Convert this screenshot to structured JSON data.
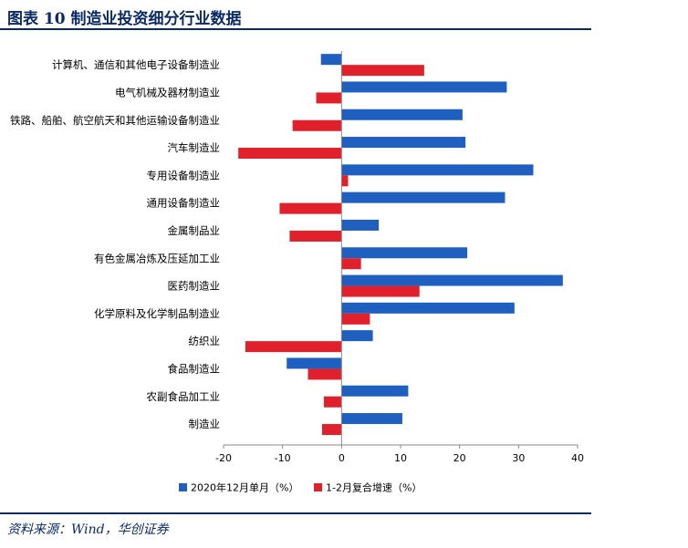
{
  "header": {
    "title": "图表 10    制造业投资细分行业数据"
  },
  "source": "资料来源：Wind，华创证券",
  "colors": {
    "series1": "#1f5fbf",
    "series2": "#e0202a",
    "heading": "#0a2a66"
  },
  "chart_data": {
    "type": "bar",
    "orientation": "horizontal",
    "categories": [
      "计算机、通信和其他电子设备制造业",
      "电气机械及器材制造业",
      "铁路、船舶、航空航天和其他运输设备制造业",
      "汽车制造业",
      "专用设备制造业",
      "通用设备制造业",
      "金属制品业",
      "有色金属冶炼及压延加工业",
      "医药制造业",
      "化学原料及化学制品制造业",
      "纺织业",
      "食品制造业",
      "农副食品加工业",
      "制造业"
    ],
    "series": [
      {
        "name": "2020年12月单月（%）",
        "color": "#1f5fbf",
        "values": [
          -3.5,
          28,
          20.5,
          21,
          32.5,
          27.7,
          6.3,
          21.3,
          37.5,
          29.3,
          5.3,
          -9.3,
          11.3,
          10.3
        ]
      },
      {
        "name": "1-2月复合增速（%）",
        "color": "#e0202a",
        "values": [
          14,
          -4.3,
          -8.3,
          -17.5,
          1.1,
          -10.5,
          -8.8,
          3.3,
          13.2,
          4.8,
          -16.3,
          -5.7,
          -3,
          -3.3
        ]
      }
    ],
    "xlim": [
      -20,
      40
    ],
    "xticks": [
      -20,
      -10,
      0,
      10,
      20,
      30,
      40
    ],
    "legend_position": "bottom"
  }
}
